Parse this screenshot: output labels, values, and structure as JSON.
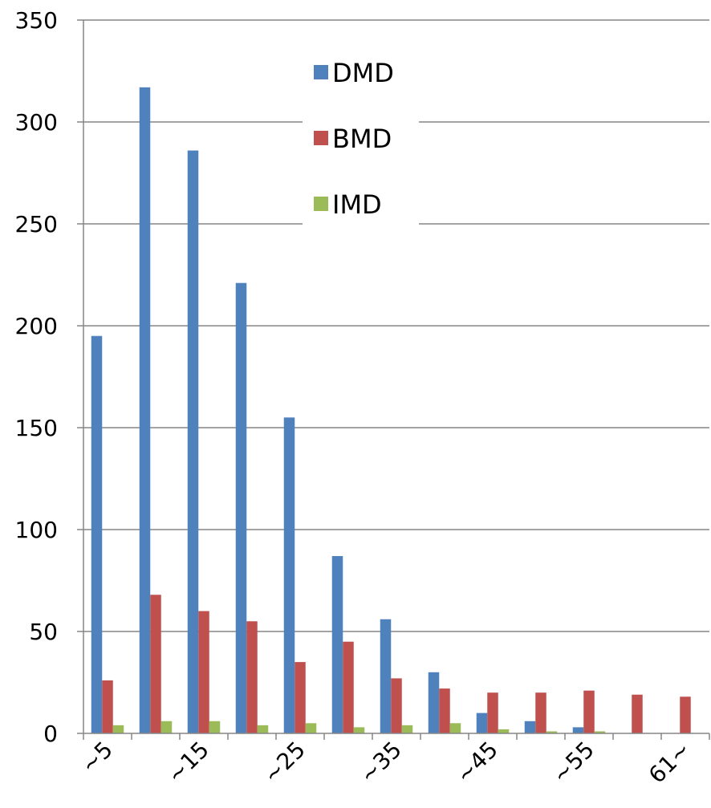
{
  "chart_data": {
    "type": "bar",
    "categories": [
      "~5",
      "",
      "~15",
      "",
      "~25",
      "",
      "~35",
      "",
      "~45",
      "",
      "~55",
      "",
      "61~"
    ],
    "series": [
      {
        "name": "DMD",
        "color": "#4f81bd",
        "values": [
          195,
          317,
          286,
          221,
          155,
          87,
          56,
          30,
          10,
          6,
          3,
          0,
          0
        ]
      },
      {
        "name": "BMD",
        "color": "#c0504d",
        "values": [
          26,
          68,
          60,
          55,
          35,
          45,
          27,
          22,
          20,
          20,
          21,
          19,
          18
        ]
      },
      {
        "name": "IMD",
        "color": "#9bbb59",
        "values": [
          4,
          6,
          6,
          4,
          5,
          3,
          4,
          5,
          2,
          1,
          1,
          0,
          0
        ]
      }
    ],
    "ylim": [
      0,
      350
    ],
    "yticks": [
      0,
      50,
      100,
      150,
      200,
      250,
      300,
      350
    ],
    "grid": true,
    "legend_position": "top-center",
    "title": "",
    "xlabel": "",
    "ylabel": ""
  }
}
